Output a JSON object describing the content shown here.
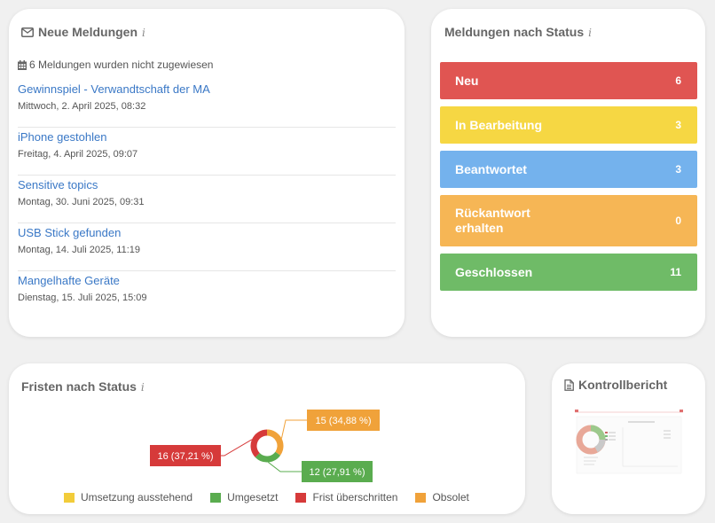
{
  "neue_meldungen": {
    "title": "Neue Meldungen",
    "info": "i",
    "unassigned_text": "6 Meldungen wurden nicht zugewiesen",
    "items": [
      {
        "title": "Gewinnspiel - Verwandtschaft der MA",
        "date": "Mittwoch, 2. April 2025, 08:32"
      },
      {
        "title": "iPhone gestohlen",
        "date": "Freitag, 4. April 2025, 09:07"
      },
      {
        "title": "Sensitive topics",
        "date": "Montag, 30. Juni 2025, 09:31"
      },
      {
        "title": "USB Stick gefunden",
        "date": "Montag, 14. Juli 2025, 11:19"
      },
      {
        "title": "Mangelhafte Geräte",
        "date": "Dienstag, 15. Juli 2025, 15:09"
      }
    ]
  },
  "meldungen_status": {
    "title": "Meldungen nach Status",
    "info": "i",
    "items": [
      {
        "label": "Neu",
        "count": "6",
        "color": "#e05552"
      },
      {
        "label": "In Bearbeitung",
        "count": "3",
        "color": "#f6d743"
      },
      {
        "label": "Beantwortet",
        "count": "3",
        "color": "#74b2ed"
      },
      {
        "label": "Rückantwort erhalten",
        "label_line1": "Rückantwort",
        "label_line2": "erhalten",
        "count": "0",
        "color": "#f6b655"
      },
      {
        "label": "Geschlossen",
        "count": "11",
        "color": "#6fbb67"
      }
    ]
  },
  "fristen": {
    "title": "Fristen nach Status",
    "info": "i",
    "legend": [
      {
        "label": "Umsetzung ausstehend",
        "color": "#f2cc3a"
      },
      {
        "label": "Umgesetzt",
        "color": "#5aac4f"
      },
      {
        "label": "Frist überschritten",
        "color": "#d63a3a"
      },
      {
        "label": "Obsolet",
        "color": "#f0a23a"
      }
    ]
  },
  "chart_data": {
    "type": "pie",
    "categories": [
      "Umsetzung ausstehend",
      "Umgesetzt",
      "Frist überschritten",
      "Obsolet"
    ],
    "values": [
      0,
      12,
      16,
      15
    ],
    "labels": [
      "",
      "12 (27,91 %)",
      "16 (37,21 %)",
      "15 (34,88 %)"
    ],
    "colors": [
      "#f2cc3a",
      "#5aac4f",
      "#d63a3a",
      "#f0a23a"
    ],
    "legend": "bottom"
  },
  "kontrollbericht": {
    "title": "Kontrollbericht"
  }
}
